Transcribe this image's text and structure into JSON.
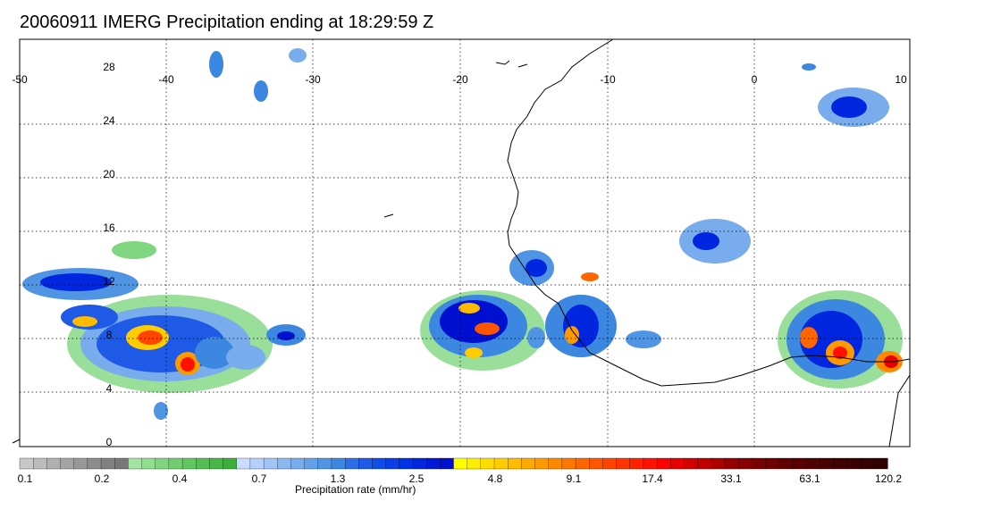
{
  "title": "20060911 IMERG Precipitation ending at 18:29:59 Z",
  "lon_labels": [
    "-50",
    "-40",
    "-30",
    "-20",
    "-10",
    "0",
    "10"
  ],
  "lat_labels": [
    "28",
    "24",
    "20",
    "16",
    "12",
    "8",
    "4",
    "0"
  ],
  "colorbar": {
    "title": "Precipitation rate (mm/hr)",
    "tick_labels": [
      "0.1",
      "0.2",
      "0.4",
      "0.7",
      "1.3",
      "2.5",
      "4.8",
      "9.1",
      "17.4",
      "33.1",
      "63.1",
      "120.2"
    ],
    "colors": [
      "#c8c8c8",
      "#bcbcbc",
      "#b0b0b0",
      "#a4a4a4",
      "#989898",
      "#8c8c8c",
      "#808080",
      "#787878",
      "#a0e6a0",
      "#90de90",
      "#80d680",
      "#70ce70",
      "#62c662",
      "#54be54",
      "#48b648",
      "#3cae3c",
      "#c8dcff",
      "#b4d0fa",
      "#a0c4f5",
      "#8cb8f0",
      "#78acec",
      "#64a0e8",
      "#5094e4",
      "#3c88e0",
      "#2c6ee6",
      "#1e5ae6",
      "#104ce6",
      "#0a3ee6",
      "#0032e6",
      "#0026e0",
      "#001ad8",
      "#0010d0",
      "#ffff00",
      "#ffee00",
      "#ffdd00",
      "#ffcc00",
      "#ffbb00",
      "#ffaa00",
      "#ff9900",
      "#ff8800",
      "#ff7700",
      "#ff6600",
      "#ff5500",
      "#ff4400",
      "#ff3300",
      "#ff2200",
      "#ff1100",
      "#ff0000",
      "#e80000",
      "#d40000",
      "#c00000",
      "#ac0000",
      "#980000",
      "#880000",
      "#780000",
      "#6c0000",
      "#600000",
      "#580000",
      "#500000",
      "#480000",
      "#420000",
      "#3c0000",
      "#360000",
      "#300000"
    ]
  }
}
